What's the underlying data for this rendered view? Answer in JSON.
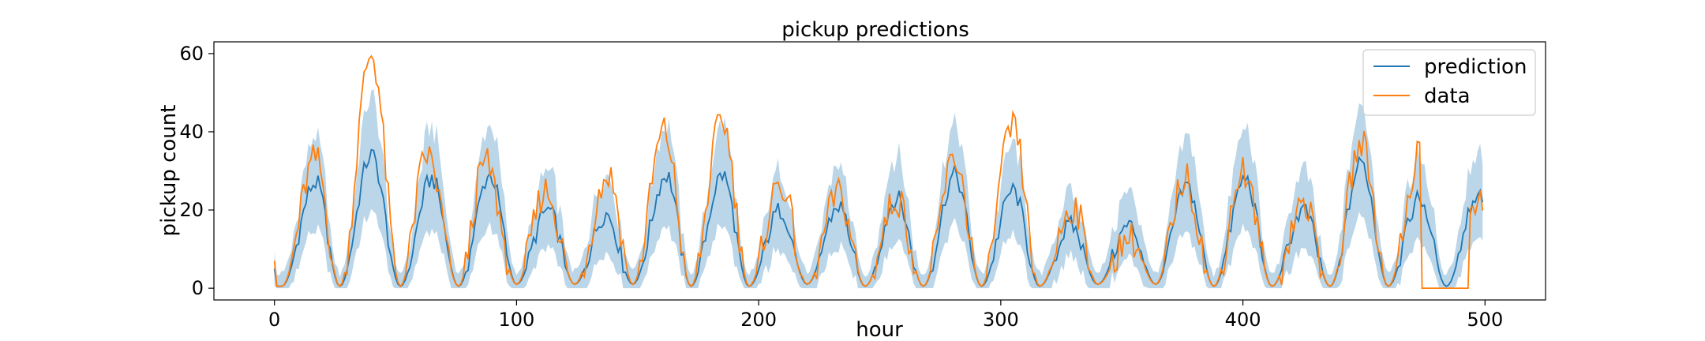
{
  "chart_data": {
    "type": "line",
    "title": "pickup predictions",
    "xlabel": "hour",
    "ylabel": "pickup count",
    "xlim": [
      -25,
      525
    ],
    "ylim": [
      -3,
      63
    ],
    "xticks": [
      0,
      100,
      200,
      300,
      400,
      500
    ],
    "yticks": [
      0,
      20,
      40,
      60
    ],
    "grid": false,
    "legend": {
      "position": "top-right",
      "entries": [
        "prediction",
        "data"
      ]
    },
    "colors": {
      "prediction": "#1f77b4",
      "data": "#ff7f0e",
      "band": "#1f77b4"
    },
    "band": {
      "name": "",
      "description_of_width": ""
    },
    "x_range": [
      0,
      499
    ],
    "series": [
      {
        "name": "prediction",
        "daily_peaks": [
          {
            "x": 17,
            "y": 27
          },
          {
            "x": 40,
            "y": 34
          },
          {
            "x": 65,
            "y": 28
          },
          {
            "x": 89,
            "y": 29
          },
          {
            "x": 113,
            "y": 20
          },
          {
            "x": 137,
            "y": 19
          },
          {
            "x": 162,
            "y": 29
          },
          {
            "x": 185,
            "y": 29
          },
          {
            "x": 209,
            "y": 20
          },
          {
            "x": 233,
            "y": 21
          },
          {
            "x": 257,
            "y": 23
          },
          {
            "x": 281,
            "y": 29
          },
          {
            "x": 305,
            "y": 25
          },
          {
            "x": 329,
            "y": 16
          },
          {
            "x": 353,
            "y": 16
          },
          {
            "x": 377,
            "y": 26
          },
          {
            "x": 401,
            "y": 28
          },
          {
            "x": 425,
            "y": 20
          },
          {
            "x": 449,
            "y": 32
          },
          {
            "x": 473,
            "y": 23
          },
          {
            "x": 497,
            "y": 24
          }
        ],
        "daily_troughs": [
          {
            "x": 3,
            "y": 0.5
          },
          {
            "x": 27,
            "y": 0.5
          },
          {
            "x": 52,
            "y": 0.5
          },
          {
            "x": 76,
            "y": 0.5
          },
          {
            "x": 100,
            "y": 1
          },
          {
            "x": 124,
            "y": 1
          },
          {
            "x": 148,
            "y": 1
          },
          {
            "x": 172,
            "y": 0.5
          },
          {
            "x": 196,
            "y": 0.5
          },
          {
            "x": 220,
            "y": 1
          },
          {
            "x": 244,
            "y": 0.5
          },
          {
            "x": 268,
            "y": 0.5
          },
          {
            "x": 292,
            "y": 0.5
          },
          {
            "x": 316,
            "y": 0.5
          },
          {
            "x": 340,
            "y": 1
          },
          {
            "x": 364,
            "y": 1
          },
          {
            "x": 388,
            "y": 0.5
          },
          {
            "x": 412,
            "y": 0.5
          },
          {
            "x": 436,
            "y": 0.5
          },
          {
            "x": 460,
            "y": 0.5
          },
          {
            "x": 484,
            "y": 0.5
          }
        ]
      },
      {
        "name": "data",
        "daily_peaks": [
          {
            "x": 17,
            "y": 33
          },
          {
            "x": 40,
            "y": 60
          },
          {
            "x": 63,
            "y": 34
          },
          {
            "x": 87,
            "y": 32
          },
          {
            "x": 112,
            "y": 25
          },
          {
            "x": 138,
            "y": 29
          },
          {
            "x": 161,
            "y": 40
          },
          {
            "x": 185,
            "y": 43
          },
          {
            "x": 209,
            "y": 27
          },
          {
            "x": 233,
            "y": 24
          },
          {
            "x": 257,
            "y": 23
          },
          {
            "x": 281,
            "y": 33
          },
          {
            "x": 305,
            "y": 41
          },
          {
            "x": 330,
            "y": 21
          },
          {
            "x": 353,
            "y": 13
          },
          {
            "x": 376,
            "y": 28
          },
          {
            "x": 400,
            "y": 30
          },
          {
            "x": 425,
            "y": 22
          },
          {
            "x": 449,
            "y": 37
          },
          {
            "x": 474,
            "y": 36
          },
          {
            "x": 497,
            "y": 23
          }
        ],
        "flat_segment": {
          "x_start": 474,
          "x_end": 493,
          "y": 0
        }
      }
    ]
  }
}
